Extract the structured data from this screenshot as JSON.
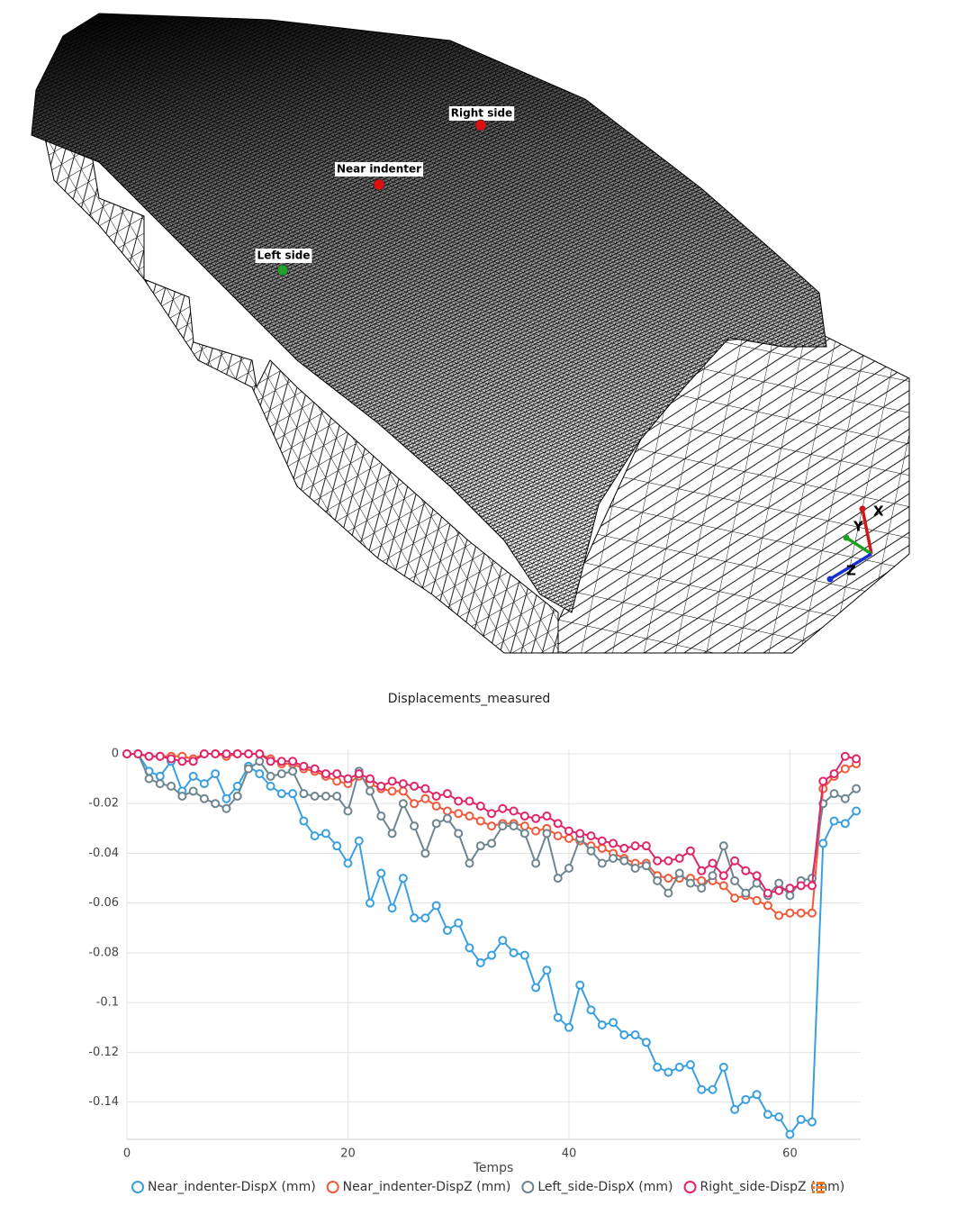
{
  "viewport": {
    "markers": [
      {
        "label": "Right side",
        "color": "#e01010"
      },
      {
        "label": "Near indenter",
        "color": "#e01010"
      },
      {
        "label": "Left side",
        "color": "#22a02a"
      }
    ],
    "axes": [
      {
        "label": "X",
        "color": "#d01818"
      },
      {
        "label": "Y",
        "color": "#20a020"
      },
      {
        "label": "Z",
        "color": "#1830d0"
      }
    ]
  },
  "chart_data": {
    "type": "line",
    "title": "Displacements_measured",
    "x_label": "Temps",
    "x": [
      0,
      1,
      2,
      3,
      4,
      5,
      6,
      7,
      8,
      9,
      10,
      11,
      12,
      13,
      14,
      15,
      16,
      17,
      18,
      19,
      20,
      21,
      22,
      23,
      24,
      25,
      26,
      27,
      28,
      29,
      30,
      31,
      32,
      33,
      34,
      35,
      36,
      37,
      38,
      39,
      40,
      41,
      42,
      43,
      44,
      45,
      46,
      47,
      48,
      49,
      50,
      51,
      52,
      53,
      54,
      55,
      56,
      57,
      58,
      59,
      60,
      61,
      62,
      63,
      64,
      65,
      66
    ],
    "xlim": [
      0,
      66.4
    ],
    "xticks": [
      0,
      20,
      40,
      60
    ],
    "ylim": [
      -0.155,
      0
    ],
    "yticks": [
      0,
      -0.02,
      -0.04,
      -0.06,
      -0.08,
      -0.1,
      -0.12,
      -0.14
    ],
    "grid": true,
    "series": [
      {
        "name": "Near_indenter-DispX (mm)",
        "color": "#3a9fe0",
        "values": [
          0,
          0,
          -0.007,
          -0.009,
          -0.003,
          -0.015,
          -0.009,
          -0.012,
          -0.008,
          -0.018,
          -0.013,
          -0.005,
          -0.008,
          -0.013,
          -0.016,
          -0.016,
          -0.027,
          -0.033,
          -0.032,
          -0.037,
          -0.044,
          -0.035,
          -0.06,
          -0.048,
          -0.062,
          -0.05,
          -0.066,
          -0.066,
          -0.061,
          -0.071,
          -0.068,
          -0.078,
          -0.084,
          -0.081,
          -0.075,
          -0.08,
          -0.081,
          -0.094,
          -0.087,
          -0.106,
          -0.11,
          -0.093,
          -0.103,
          -0.109,
          -0.108,
          -0.113,
          -0.113,
          -0.116,
          -0.126,
          -0.128,
          -0.126,
          -0.125,
          -0.135,
          -0.135,
          -0.126,
          -0.143,
          -0.139,
          -0.137,
          -0.145,
          -0.146,
          -0.153,
          -0.147,
          -0.148,
          -0.036,
          -0.027,
          -0.028,
          -0.023
        ]
      },
      {
        "name": "Near_indenter-DispZ (mm)",
        "color": "#ef5a3a",
        "values": [
          0,
          0,
          -0.001,
          -0.001,
          -0.001,
          -0.001,
          -0.002,
          0,
          0,
          -0.001,
          0,
          0,
          0,
          -0.002,
          -0.004,
          -0.004,
          -0.006,
          -0.007,
          -0.009,
          -0.011,
          -0.012,
          -0.009,
          -0.012,
          -0.014,
          -0.015,
          -0.015,
          -0.02,
          -0.018,
          -0.021,
          -0.023,
          -0.024,
          -0.025,
          -0.027,
          -0.029,
          -0.028,
          -0.028,
          -0.029,
          -0.031,
          -0.03,
          -0.033,
          -0.034,
          -0.035,
          -0.037,
          -0.038,
          -0.04,
          -0.042,
          -0.044,
          -0.044,
          -0.049,
          -0.05,
          -0.05,
          -0.05,
          -0.051,
          -0.051,
          -0.053,
          -0.058,
          -0.057,
          -0.059,
          -0.061,
          -0.065,
          -0.064,
          -0.064,
          -0.064,
          -0.014,
          -0.009,
          -0.006,
          -0.004
        ]
      },
      {
        "name": "Left_side-DispX (mm)",
        "color": "#6e8590",
        "values": [
          0,
          0,
          -0.01,
          -0.012,
          -0.013,
          -0.017,
          -0.015,
          -0.018,
          -0.02,
          -0.022,
          -0.017,
          -0.006,
          -0.003,
          -0.009,
          -0.008,
          -0.007,
          -0.016,
          -0.017,
          -0.017,
          -0.017,
          -0.023,
          -0.007,
          -0.015,
          -0.025,
          -0.032,
          -0.02,
          -0.029,
          -0.04,
          -0.028,
          -0.026,
          -0.032,
          -0.044,
          -0.037,
          -0.036,
          -0.029,
          -0.029,
          -0.032,
          -0.044,
          -0.032,
          -0.05,
          -0.046,
          -0.034,
          -0.039,
          -0.044,
          -0.042,
          -0.043,
          -0.046,
          -0.045,
          -0.051,
          -0.056,
          -0.048,
          -0.052,
          -0.054,
          -0.049,
          -0.037,
          -0.051,
          -0.056,
          -0.052,
          -0.057,
          -0.052,
          -0.057,
          -0.051,
          -0.05,
          -0.02,
          -0.016,
          -0.018,
          -0.014
        ]
      },
      {
        "name": "Right_side-DispZ (mm)",
        "color": "#e0256a",
        "values": [
          0,
          0,
          -0.001,
          -0.001,
          -0.002,
          -0.003,
          -0.003,
          0,
          0,
          0,
          0,
          0,
          0,
          -0.003,
          -0.003,
          -0.003,
          -0.005,
          -0.006,
          -0.008,
          -0.008,
          -0.01,
          -0.008,
          -0.01,
          -0.013,
          -0.011,
          -0.012,
          -0.013,
          -0.014,
          -0.017,
          -0.016,
          -0.019,
          -0.019,
          -0.021,
          -0.024,
          -0.022,
          -0.023,
          -0.025,
          -0.026,
          -0.025,
          -0.028,
          -0.031,
          -0.032,
          -0.033,
          -0.035,
          -0.036,
          -0.038,
          -0.037,
          -0.037,
          -0.043,
          -0.043,
          -0.042,
          -0.039,
          -0.047,
          -0.044,
          -0.049,
          -0.043,
          -0.047,
          -0.049,
          -0.056,
          -0.055,
          -0.054,
          -0.053,
          -0.053,
          -0.011,
          -0.008,
          -0.001,
          -0.002
        ]
      }
    ]
  }
}
